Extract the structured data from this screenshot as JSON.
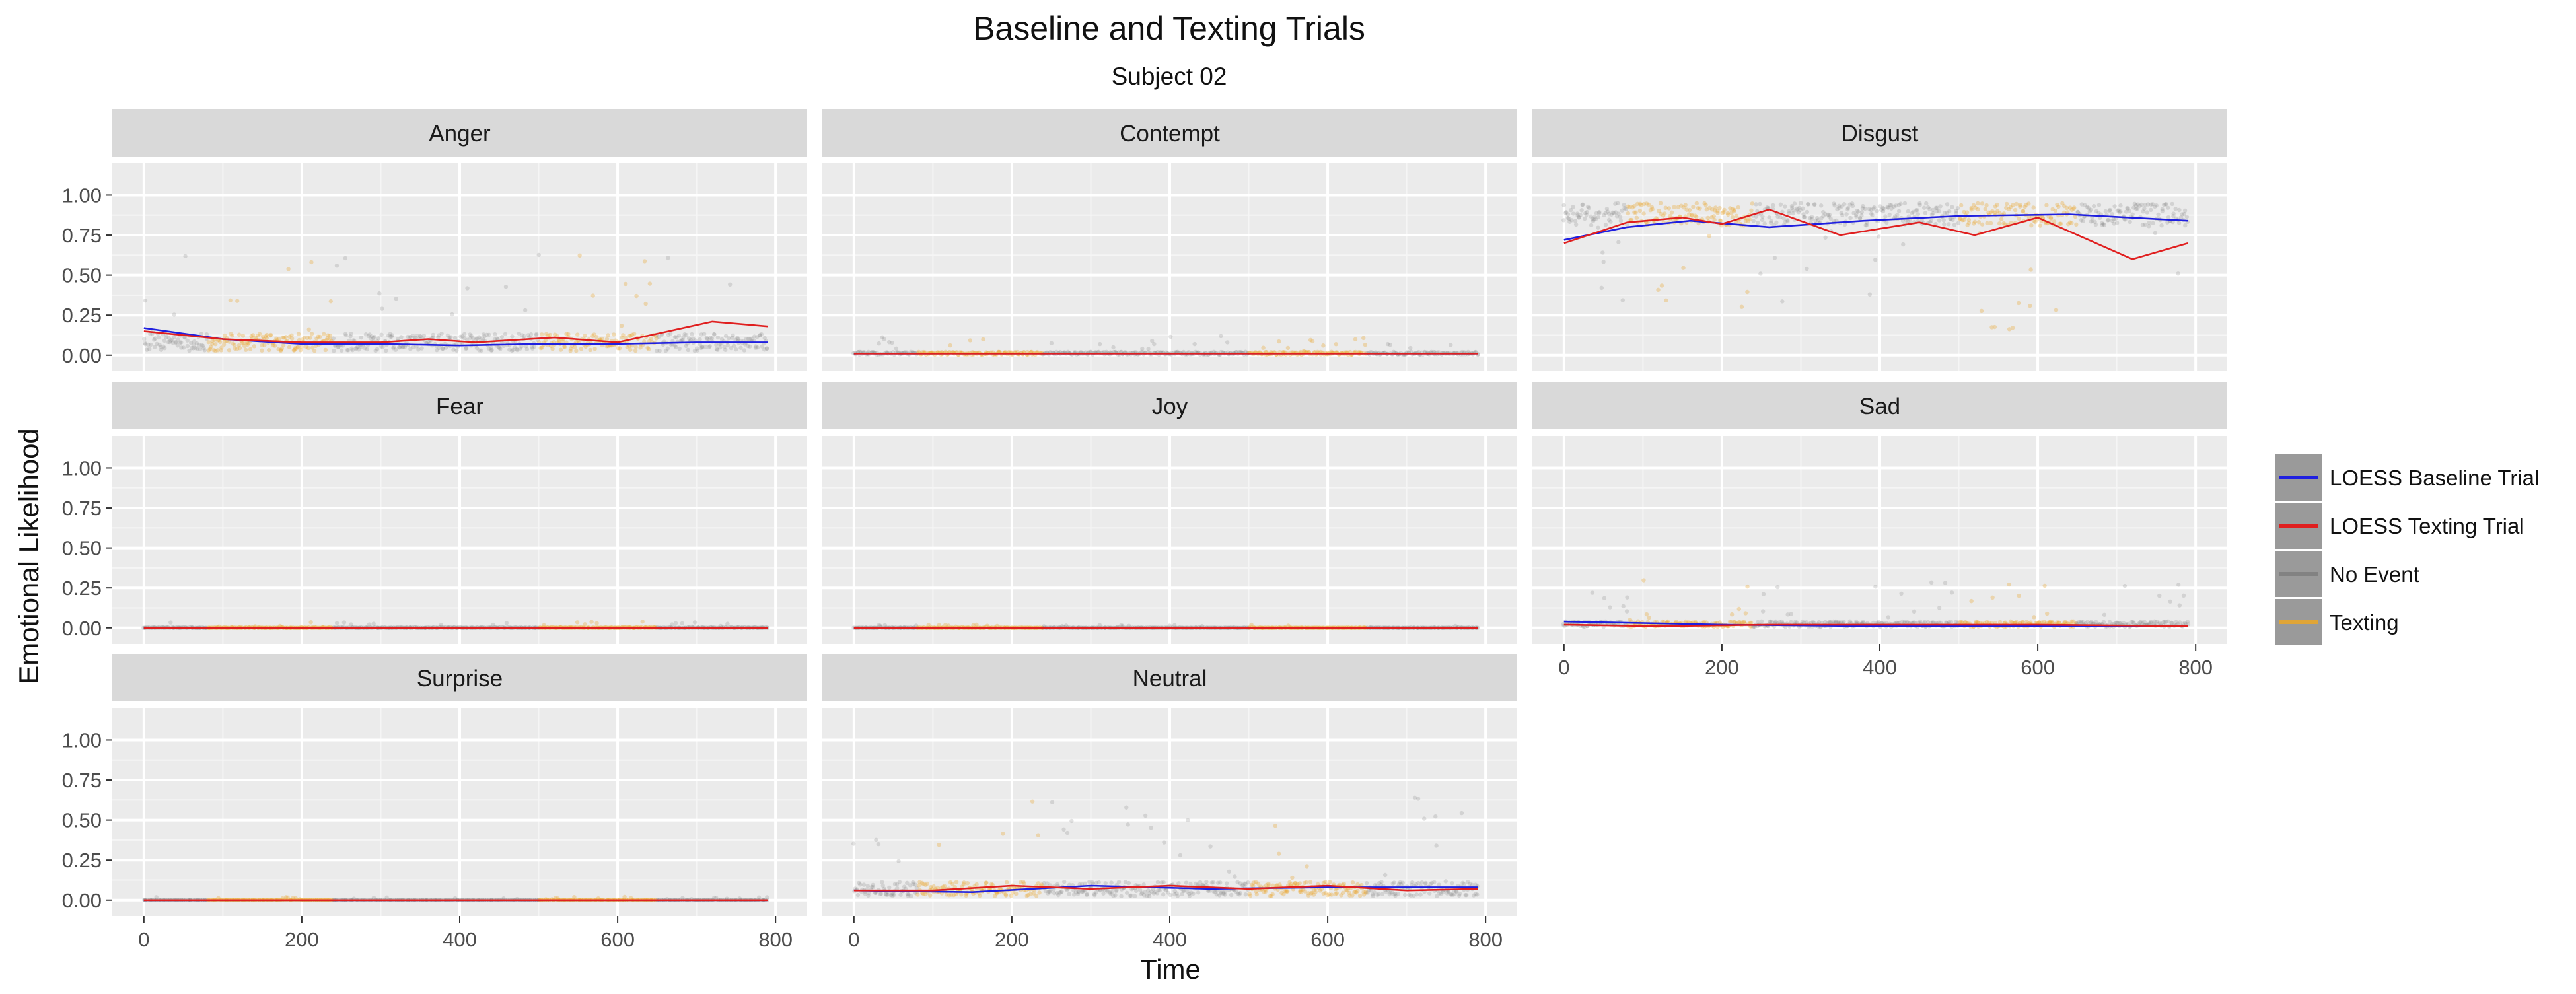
{
  "chart_data": {
    "type": "scatter",
    "title": "Baseline and Texting Trials",
    "subtitle": "Subject 02",
    "xlabel": "Time",
    "ylabel": "Emotional Likelihood",
    "xlim": [
      -40,
      840
    ],
    "ylim": [
      -0.1,
      1.2
    ],
    "x_ticks": [
      0,
      200,
      400,
      600,
      800
    ],
    "y_ticks": [
      0.0,
      0.25,
      0.5,
      0.75,
      1.0
    ],
    "x_tick_labels": [
      "0",
      "200",
      "400",
      "600",
      "800"
    ],
    "y_tick_labels": [
      "0.00",
      "0.25",
      "0.50",
      "0.75",
      "1.00"
    ],
    "grid": true,
    "legend_position": "right",
    "texting_intervals": [
      [
        80,
        240
      ],
      [
        500,
        650
      ]
    ],
    "legend": [
      {
        "label": "LOESS Baseline Trial",
        "color": "#1f1fe0"
      },
      {
        "label": "LOESS Texting Trial",
        "color": "#e01f1f"
      },
      {
        "label": "No Event",
        "color": "#808080"
      },
      {
        "label": "Texting",
        "color": "#e8a62c"
      }
    ],
    "panels": [
      {
        "name": "Anger",
        "level": 0.07,
        "spread": 0.18,
        "spike_max": 0.65,
        "loess_baseline": [
          [
            0,
            0.17
          ],
          [
            100,
            0.1
          ],
          [
            200,
            0.07
          ],
          [
            300,
            0.07
          ],
          [
            400,
            0.06
          ],
          [
            500,
            0.07
          ],
          [
            600,
            0.07
          ],
          [
            700,
            0.08
          ],
          [
            790,
            0.08
          ]
        ],
        "loess_texting": [
          [
            0,
            0.15
          ],
          [
            100,
            0.1
          ],
          [
            200,
            0.08
          ],
          [
            300,
            0.08
          ],
          [
            360,
            0.1
          ],
          [
            420,
            0.08
          ],
          [
            520,
            0.11
          ],
          [
            600,
            0.08
          ],
          [
            720,
            0.21
          ],
          [
            790,
            0.18
          ]
        ]
      },
      {
        "name": "Contempt",
        "level": 0.01,
        "spread": 0.03,
        "spike_max": 0.12,
        "loess_baseline": [
          [
            0,
            0.01
          ],
          [
            200,
            0.01
          ],
          [
            400,
            0.01
          ],
          [
            600,
            0.01
          ],
          [
            790,
            0.01
          ]
        ],
        "loess_texting": [
          [
            0,
            0.01
          ],
          [
            200,
            0.01
          ],
          [
            400,
            0.01
          ],
          [
            600,
            0.01
          ],
          [
            790,
            0.01
          ]
        ]
      },
      {
        "name": "Disgust",
        "level": 0.88,
        "spread": 0.12,
        "spike_max": 0.98,
        "inverted": true,
        "loess_baseline": [
          [
            0,
            0.72
          ],
          [
            80,
            0.8
          ],
          [
            160,
            0.84
          ],
          [
            260,
            0.8
          ],
          [
            380,
            0.84
          ],
          [
            500,
            0.87
          ],
          [
            640,
            0.88
          ],
          [
            790,
            0.84
          ]
        ],
        "loess_texting": [
          [
            0,
            0.7
          ],
          [
            80,
            0.83
          ],
          [
            150,
            0.86
          ],
          [
            200,
            0.82
          ],
          [
            260,
            0.91
          ],
          [
            350,
            0.75
          ],
          [
            450,
            0.83
          ],
          [
            520,
            0.75
          ],
          [
            600,
            0.86
          ],
          [
            720,
            0.6
          ],
          [
            790,
            0.7
          ]
        ]
      },
      {
        "name": "Fear",
        "level": 0.0,
        "spread": 0.01,
        "spike_max": 0.04,
        "loess_baseline": [
          [
            0,
            0.0
          ],
          [
            790,
            0.0
          ]
        ],
        "loess_texting": [
          [
            0,
            0.0
          ],
          [
            790,
            0.0
          ]
        ]
      },
      {
        "name": "Joy",
        "level": 0.0,
        "spread": 0.005,
        "spike_max": 0.02,
        "loess_baseline": [
          [
            0,
            0.0
          ],
          [
            790,
            0.0
          ]
        ],
        "loess_texting": [
          [
            0,
            0.0
          ],
          [
            790,
            0.0
          ]
        ]
      },
      {
        "name": "Sad",
        "level": 0.02,
        "spread": 0.06,
        "spike_max": 0.3,
        "loess_baseline": [
          [
            0,
            0.04
          ],
          [
            200,
            0.02
          ],
          [
            400,
            0.01
          ],
          [
            600,
            0.01
          ],
          [
            790,
            0.01
          ]
        ],
        "loess_texting": [
          [
            0,
            0.02
          ],
          [
            120,
            0.01
          ],
          [
            260,
            0.02
          ],
          [
            400,
            0.02
          ],
          [
            600,
            0.02
          ],
          [
            790,
            0.01
          ]
        ]
      },
      {
        "name": "Surprise",
        "level": 0.0,
        "spread": 0.004,
        "spike_max": 0.02,
        "loess_baseline": [
          [
            0,
            0.0
          ],
          [
            790,
            0.0
          ]
        ],
        "loess_texting": [
          [
            0,
            0.0
          ],
          [
            790,
            0.0
          ]
        ]
      },
      {
        "name": "Neutral",
        "level": 0.06,
        "spread": 0.15,
        "spike_max": 0.65,
        "loess_baseline": [
          [
            0,
            0.06
          ],
          [
            150,
            0.05
          ],
          [
            300,
            0.09
          ],
          [
            450,
            0.07
          ],
          [
            600,
            0.08
          ],
          [
            790,
            0.08
          ]
        ],
        "loess_texting": [
          [
            0,
            0.06
          ],
          [
            100,
            0.06
          ],
          [
            200,
            0.09
          ],
          [
            300,
            0.07
          ],
          [
            400,
            0.09
          ],
          [
            500,
            0.07
          ],
          [
            600,
            0.09
          ],
          [
            700,
            0.06
          ],
          [
            790,
            0.07
          ]
        ]
      }
    ]
  }
}
